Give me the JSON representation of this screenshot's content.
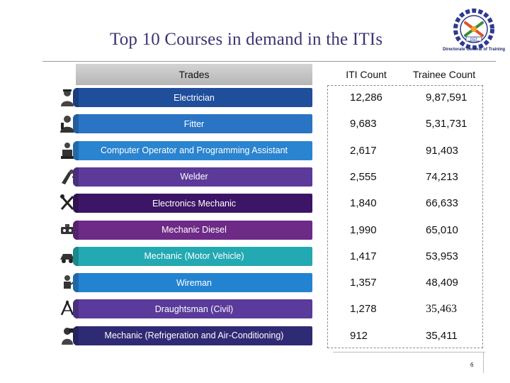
{
  "slide": {
    "title": "Top 10 Courses in demand in the ITIs",
    "logo_caption": "Directorate General of Training",
    "logo_badge": "DGT",
    "page_number": "6"
  },
  "table": {
    "headers": {
      "trades": "Trades",
      "iti_count": "ITI Count",
      "trainee_count": "Trainee Count"
    },
    "rows": [
      {
        "trade": "Electrician",
        "iti_count": "12,286",
        "trainee_count": "9,87,591",
        "color": "#1f4e9b",
        "icon": "electrician-icon"
      },
      {
        "trade": "Fitter",
        "iti_count": "9,683",
        "trainee_count": "5,31,731",
        "color": "#2a74c4",
        "icon": "fitter-icon"
      },
      {
        "trade": "Computer Operator and Programming Assistant",
        "iti_count": "2,617",
        "trainee_count": "91,403",
        "color": "#2a84cf",
        "icon": "computer-operator-icon"
      },
      {
        "trade": "Welder",
        "iti_count": "2,555",
        "trainee_count": "74,213",
        "color": "#5b3a9a",
        "icon": "welder-icon"
      },
      {
        "trade": "Electronics Mechanic",
        "iti_count": "1,840",
        "trainee_count": "66,633",
        "color": "#3d1566",
        "icon": "electronics-mechanic-icon"
      },
      {
        "trade": "Mechanic Diesel",
        "iti_count": "1,990",
        "trainee_count": "65,010",
        "color": "#6d2a86",
        "icon": "mechanic-diesel-icon"
      },
      {
        "trade": "Mechanic (Motor Vehicle)",
        "iti_count": "1,417",
        "trainee_count": "53,953",
        "color": "#22a9b2",
        "icon": "motor-vehicle-icon"
      },
      {
        "trade": "Wireman",
        "iti_count": "1,357",
        "trainee_count": "48,409",
        "color": "#2483d0",
        "icon": "wireman-icon"
      },
      {
        "trade": "Draughtsman (Civil)",
        "iti_count": "1,278",
        "trainee_count": "35,463",
        "color": "#5a3a9a",
        "icon": "draughtsman-icon"
      },
      {
        "trade": "Mechanic (Refrigeration and Air-Conditioning)",
        "iti_count": "912",
        "trainee_count": "35,411",
        "color": "#2f2a74",
        "icon": "refrigeration-icon"
      }
    ]
  }
}
